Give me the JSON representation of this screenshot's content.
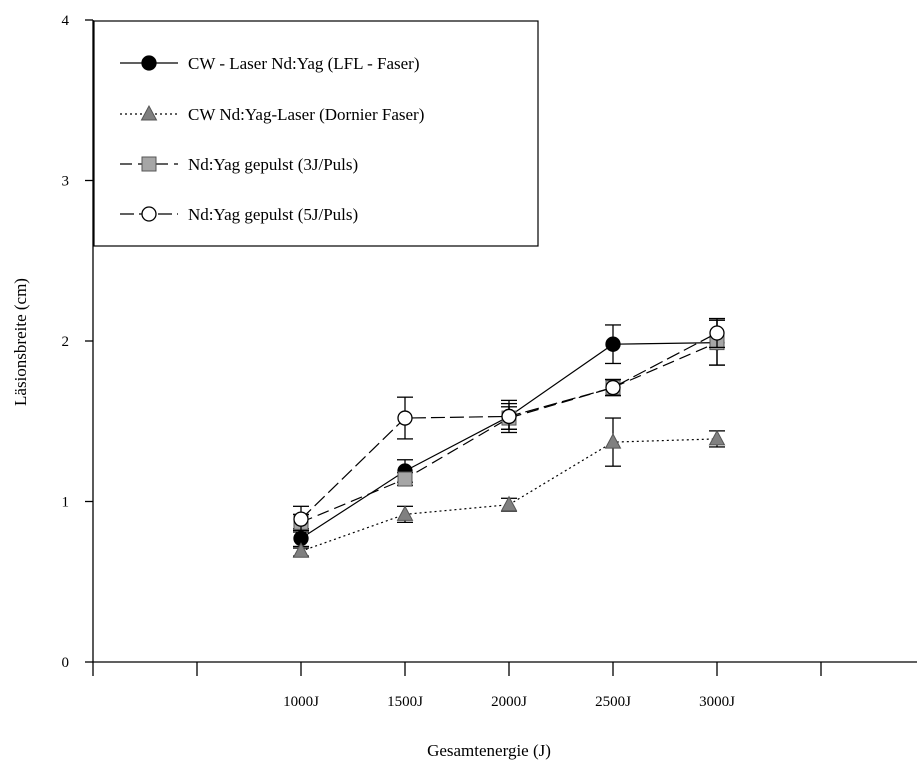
{
  "chart_data": {
    "type": "line",
    "xlabel": "Gesamtenergie (J)",
    "ylabel": "Läsionsbreite (cm)",
    "ylim": [
      0,
      4
    ],
    "yticks": [
      0,
      1,
      2,
      3,
      4
    ],
    "ytick_labels": [
      "0",
      "1",
      "2",
      "3",
      "4"
    ],
    "xlim": [
      0,
      8
    ],
    "xticks": [
      0,
      1,
      2,
      3,
      4,
      5,
      6,
      7,
      8
    ],
    "categories": [
      "1000J",
      "1500J",
      "2000J",
      "2500J",
      "3000J"
    ],
    "category_positions": [
      2,
      3,
      4,
      5,
      6
    ],
    "grid": false,
    "legend_position": "top-left",
    "series": [
      {
        "name": "CW - Laser Nd:Yag (LFL - Faser)",
        "values": [
          0.77,
          1.19,
          1.53,
          1.98,
          1.99
        ],
        "errors": [
          0.06,
          0.07,
          0.1,
          0.12,
          0.14
        ],
        "marker": "circle-filled",
        "line_style": "solid",
        "color": "#000000",
        "fill": "#000000"
      },
      {
        "name": "CW Nd:Yag-Laser (Dornier Faser)",
        "values": [
          0.69,
          0.92,
          0.98,
          1.37,
          1.39
        ],
        "errors": [
          0.03,
          0.05,
          0.04,
          0.15,
          0.05
        ],
        "marker": "triangle-filled",
        "line_style": "dotted",
        "color": "#000000",
        "fill": "#808080"
      },
      {
        "name": "Nd:Yag gepulst (3J/Puls)",
        "values": [
          0.87,
          1.14,
          1.52,
          1.71,
          1.99
        ],
        "errors": [
          0.05,
          0.04,
          0.07,
          0.05,
          0.14
        ],
        "marker": "square-filled",
        "line_style": "longdash",
        "color": "#000000",
        "fill": "#a6a6a6"
      },
      {
        "name": "Nd:Yag gepulst (5J/Puls)",
        "values": [
          0.89,
          1.52,
          1.53,
          1.71,
          2.05
        ],
        "errors": [
          0.08,
          0.13,
          0.08,
          0.05,
          0.09
        ],
        "marker": "circle-open",
        "line_style": "dashed",
        "color": "#000000",
        "fill": "#ffffff"
      }
    ]
  }
}
